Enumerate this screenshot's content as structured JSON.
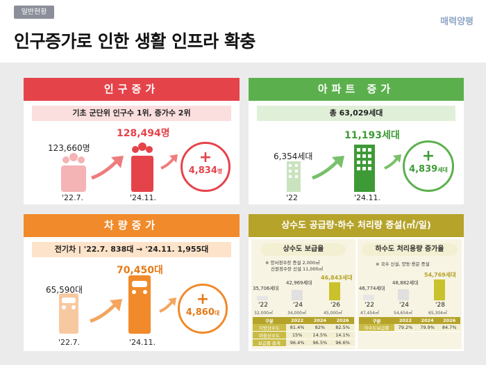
{
  "header": {
    "tag": "일반현황",
    "brand": "매력양평",
    "title": "인구증가로 인한 생활 인프라 확충"
  },
  "population": {
    "title": "인구증가",
    "subtitle": "기초 군단위 인구수 1위, 증가수 2위",
    "before_value": "123,660명",
    "before_date": "'22.7.",
    "after_value": "128,494명",
    "after_date": "'24.11.",
    "increase": "4,834",
    "increase_unit": "명"
  },
  "apartment": {
    "title": "아파트 증가",
    "subtitle": "총 63,029세대",
    "before_value": "6,354세대",
    "before_date": "'22",
    "after_value": "11,193세대",
    "after_date": "'24.11.",
    "increase": "4,839",
    "increase_unit": "세대"
  },
  "vehicle": {
    "title": "차량증가",
    "subtitle": "전기차 | '22.7. 838대 → '24.11. 1,955대",
    "before_value": "65,590대",
    "before_date": "'22.7.",
    "after_value": "70,450대",
    "after_date": "'24.11.",
    "increase": "4,860",
    "increase_unit": "대"
  },
  "water": {
    "title": "상수도 공급량·하수 처리량 증설(㎥/일)",
    "supply": {
      "title": "상수도 보급율",
      "note1": "※ 양서정수장 증설 2,000㎥",
      "note2": "신원정수장 신설 11,000㎥",
      "bars": [
        {
          "households": "35,706세대",
          "year": "'22",
          "capacity": "32,000㎥"
        },
        {
          "households": "42,969세대",
          "year": "'24",
          "capacity": "34,000㎥"
        },
        {
          "households": "46,843세대",
          "year": "'26",
          "capacity": "45,000㎥"
        }
      ],
      "table": {
        "headers": [
          "구분",
          "2022",
          "2024",
          "2026"
        ],
        "rows": [
          [
            "지방상수도",
            "81.4%",
            "82%",
            "82.5%"
          ],
          [
            "마을상수도",
            "15%",
            "14.5%",
            "14.1%"
          ],
          [
            "보급률 총계",
            "96.4%",
            "96.5%",
            "96.6%"
          ]
        ]
      }
    },
    "sewage": {
      "title": "하수도 처리용량 증가율",
      "note1": "※ 국수 신설, 양동·용문 증설",
      "bars": [
        {
          "households": "46,774세대",
          "year": "'22",
          "capacity": "47,454㎥"
        },
        {
          "households": "48,882세대",
          "year": "'24",
          "capacity": "54,654㎥"
        },
        {
          "households": "54,769세대",
          "year": "'28",
          "capacity": "65,304㎥"
        }
      ],
      "table": {
        "headers": [
          "구분",
          "2022",
          "2024",
          "2026"
        ],
        "rows": [
          [
            "하수도보급률",
            "79.2%",
            "79.9%",
            "84.7%"
          ]
        ]
      }
    }
  },
  "colors": {
    "red": "#e5434a",
    "green": "#5bb04d",
    "orange": "#f08a2a",
    "olive": "#b5a32a"
  }
}
